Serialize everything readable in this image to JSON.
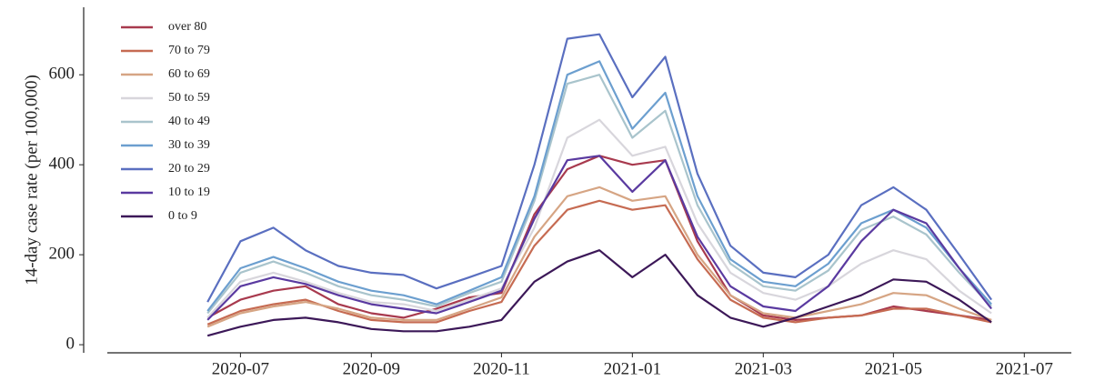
{
  "chart_data": {
    "type": "line",
    "ylabel": "14-day case rate (per 100,000)",
    "x": [
      2020.458,
      2020.5,
      2020.542,
      2020.583,
      2020.625,
      2020.667,
      2020.708,
      2020.75,
      2020.792,
      2020.833,
      2020.875,
      2020.917,
      2020.958,
      2021.0,
      2021.042,
      2021.083,
      2021.125,
      2021.167,
      2021.208,
      2021.25,
      2021.292,
      2021.333,
      2021.375,
      2021.417,
      2021.458
    ],
    "xlim": [
      2020.3,
      2021.56
    ],
    "xticks": [
      {
        "value": 2020.5,
        "label": "2020-07"
      },
      {
        "value": 2020.667,
        "label": "2020-09"
      },
      {
        "value": 2020.833,
        "label": "2020-11"
      },
      {
        "value": 2021.0,
        "label": "2021-01"
      },
      {
        "value": 2021.167,
        "label": "2021-03"
      },
      {
        "value": 2021.333,
        "label": "2021-05"
      },
      {
        "value": 2021.5,
        "label": "2021-07"
      }
    ],
    "ylim": [
      -18,
      750
    ],
    "yticks": [
      0,
      200,
      400,
      600
    ],
    "grid": false,
    "legend": "upper left",
    "series": [
      {
        "name": "over 80",
        "color": "#a83a4e",
        "values": [
          60,
          100,
          120,
          130,
          90,
          70,
          60,
          80,
          105,
          115,
          290,
          390,
          420,
          400,
          410,
          230,
          110,
          65,
          55,
          60,
          65,
          85,
          75,
          65,
          55
        ]
      },
      {
        "name": "70 to 79",
        "color": "#c66b52",
        "values": [
          45,
          75,
          90,
          100,
          75,
          55,
          50,
          50,
          75,
          95,
          220,
          300,
          320,
          300,
          310,
          190,
          100,
          60,
          50,
          60,
          65,
          80,
          80,
          65,
          50
        ]
      },
      {
        "name": "60 to 69",
        "color": "#d6a584",
        "values": [
          40,
          70,
          85,
          95,
          80,
          60,
          55,
          55,
          80,
          105,
          240,
          330,
          350,
          320,
          330,
          200,
          110,
          70,
          60,
          75,
          90,
          115,
          110,
          80,
          55
        ]
      },
      {
        "name": "50 to 59",
        "color": "#d8d6dc",
        "values": [
          60,
          140,
          160,
          140,
          115,
          95,
          90,
          75,
          100,
          125,
          260,
          460,
          500,
          420,
          440,
          270,
          160,
          115,
          100,
          130,
          180,
          210,
          190,
          120,
          70
        ]
      },
      {
        "name": "40 to 49",
        "color": "#a9c4cc",
        "values": [
          70,
          160,
          185,
          160,
          130,
          110,
          100,
          85,
          115,
          140,
          320,
          580,
          600,
          460,
          520,
          310,
          180,
          130,
          120,
          165,
          255,
          285,
          245,
          160,
          85
        ]
      },
      {
        "name": "30 to 39",
        "color": "#6c9fcf",
        "values": [
          75,
          170,
          195,
          170,
          140,
          120,
          110,
          90,
          120,
          150,
          330,
          600,
          630,
          480,
          560,
          330,
          190,
          140,
          130,
          180,
          270,
          300,
          260,
          170,
          90
        ]
      },
      {
        "name": "20 to 29",
        "color": "#5a6fc0",
        "values": [
          95,
          230,
          260,
          210,
          175,
          160,
          155,
          125,
          150,
          175,
          400,
          680,
          690,
          550,
          640,
          380,
          220,
          160,
          150,
          200,
          310,
          350,
          300,
          200,
          100
        ]
      },
      {
        "name": "10 to 19",
        "color": "#5a3aa0",
        "values": [
          55,
          130,
          150,
          135,
          110,
          90,
          80,
          70,
          95,
          120,
          280,
          410,
          420,
          340,
          410,
          240,
          130,
          85,
          75,
          130,
          230,
          300,
          270,
          170,
          80
        ]
      },
      {
        "name": "0 to 9",
        "color": "#3c1858",
        "values": [
          20,
          40,
          55,
          60,
          50,
          35,
          30,
          30,
          40,
          55,
          140,
          185,
          210,
          150,
          200,
          110,
          60,
          40,
          60,
          85,
          110,
          145,
          140,
          100,
          50
        ]
      }
    ]
  }
}
